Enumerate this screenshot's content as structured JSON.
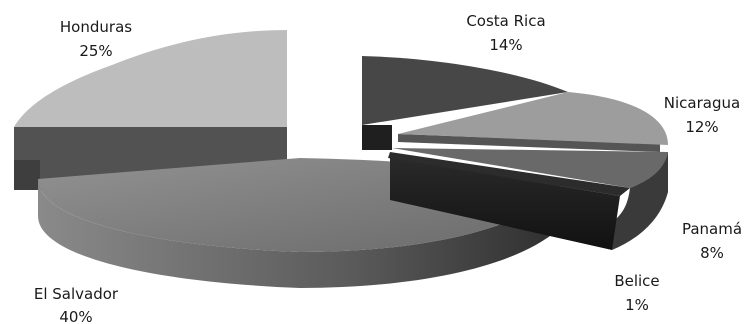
{
  "chart_data": {
    "type": "pie",
    "style": "3d-exploded",
    "grayscale": true,
    "slices": [
      {
        "label": "Costa Rica",
        "value": 14,
        "value_label": "14%",
        "color": "#474747"
      },
      {
        "label": "Nicaragua",
        "value": 12,
        "value_label": "12%",
        "color": "#9d9d9d"
      },
      {
        "label": "Panamá",
        "value": 8,
        "value_label": "8%",
        "color": "#696969"
      },
      {
        "label": "Belice",
        "value": 1,
        "value_label": "1%",
        "color": "#2c2c2c"
      },
      {
        "label": "El Salvador",
        "value": 40,
        "value_label": "40%",
        "color": "#7a7a7a"
      },
      {
        "label": "Honduras",
        "value": 25,
        "value_label": "25%",
        "color": "#bdbdbd"
      }
    ]
  }
}
